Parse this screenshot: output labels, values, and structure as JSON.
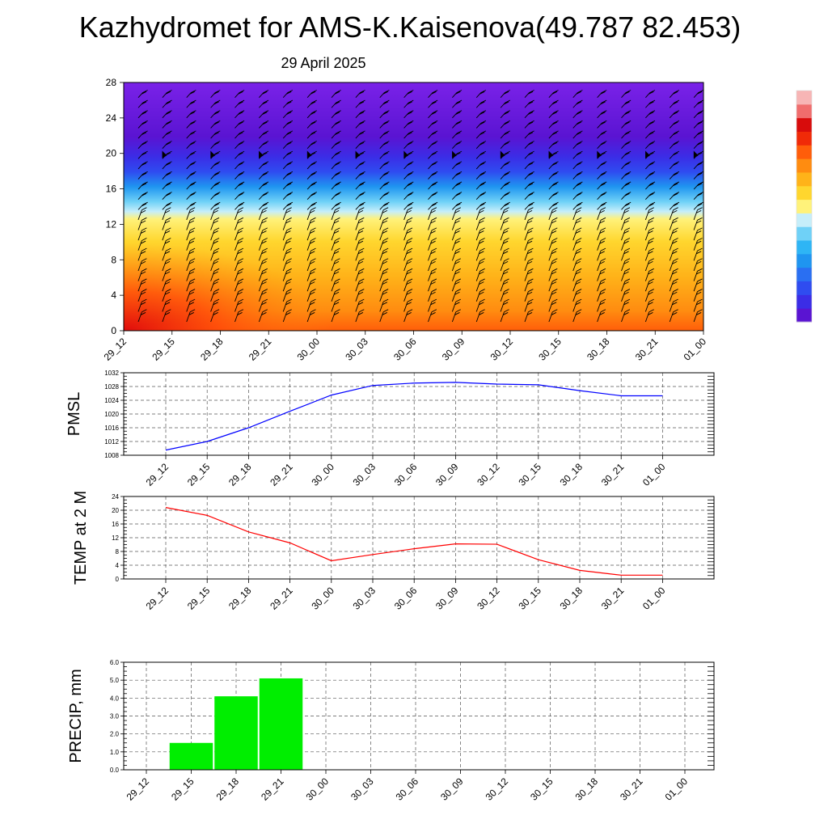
{
  "page": {
    "title": "Kazhydromet for AMS-K.Kaisenova(49.787 82.453)",
    "date": "29 April 2025"
  },
  "time_labels": [
    "29_12",
    "29_15",
    "29_18",
    "29_21",
    "30_00",
    "30_03",
    "30_06",
    "30_09",
    "30_12",
    "30_15",
    "30_18",
    "30_21",
    "01_00"
  ],
  "colorbar": {
    "colors": [
      "#5a14d2",
      "#3b2de6",
      "#2f4cf0",
      "#2a6ff2",
      "#1f95f0",
      "#2eb5f5",
      "#6fd1f7",
      "#c6eefa",
      "#fff27a",
      "#ffd62e",
      "#ffb319",
      "#ff8c10",
      "#ff5d0a",
      "#f02a08",
      "#d80c0c",
      "#f06d6d",
      "#f7b5b5"
    ]
  },
  "chart_data": [
    {
      "type": "heatmap",
      "name": "vertical-cross-section",
      "x": [
        "29_12",
        "29_15",
        "29_18",
        "29_21",
        "30_00",
        "30_03",
        "30_06",
        "30_09",
        "30_12",
        "30_15",
        "30_18",
        "30_21",
        "01_00"
      ],
      "yticks": [
        0,
        4,
        8,
        12,
        16,
        20,
        24,
        28
      ],
      "ylim": [
        0,
        28
      ],
      "layers": [
        {
          "from": 0,
          "to": 12,
          "range": "orange-red"
        },
        {
          "from": 12,
          "to": 16,
          "range": "light-blue"
        },
        {
          "from": 16,
          "to": 28,
          "range": "blue-purple"
        }
      ],
      "wind_barbs": true
    },
    {
      "type": "line",
      "ylabel": "PMSL",
      "x": [
        "29_12",
        "29_15",
        "29_18",
        "29_21",
        "30_00",
        "30_03",
        "30_06",
        "30_09",
        "30_12",
        "30_15",
        "30_18",
        "30_21",
        "01_00"
      ],
      "values": [
        1009.5,
        1012,
        1016,
        1020.8,
        1025.5,
        1028.3,
        1029,
        1029.2,
        1028.7,
        1028.5,
        1026.8,
        1025.3,
        1025.3
      ],
      "yticks": [
        1008,
        1012,
        1016,
        1020,
        1024,
        1028,
        1032
      ],
      "ylim": [
        1008,
        1032
      ],
      "color": "#0000ff",
      "grid": true
    },
    {
      "type": "line",
      "ylabel": "TEMP at 2 M",
      "x": [
        "29_12",
        "29_15",
        "29_18",
        "29_21",
        "30_00",
        "30_03",
        "30_06",
        "30_09",
        "30_12",
        "30_15",
        "30_18",
        "30_21",
        "01_00"
      ],
      "values": [
        20.8,
        18.5,
        13.7,
        10.5,
        5.3,
        7.1,
        8.8,
        10.2,
        10.1,
        5.6,
        2.5,
        1.1,
        1.1
      ],
      "yticks": [
        0,
        4,
        8,
        12,
        16,
        20,
        24
      ],
      "ylim": [
        0,
        24
      ],
      "color": "#ff0000",
      "grid": true
    },
    {
      "type": "bar",
      "ylabel": "PRECIP, mm",
      "categories": [
        "29_12",
        "29_15",
        "29_18",
        "29_21",
        "30_00",
        "30_03",
        "30_06",
        "30_09",
        "30_12",
        "30_15",
        "30_18",
        "30_21",
        "01_00"
      ],
      "values": [
        0,
        1.5,
        4.1,
        5.1,
        0,
        0,
        0,
        0,
        0,
        0,
        0,
        0,
        0
      ],
      "yticks": [
        "0.0",
        "1.0",
        "2.0",
        "3.0",
        "4.0",
        "5.0",
        "6.0"
      ],
      "ylim": [
        0,
        6
      ],
      "color": "#00ee00",
      "grid": true
    }
  ]
}
